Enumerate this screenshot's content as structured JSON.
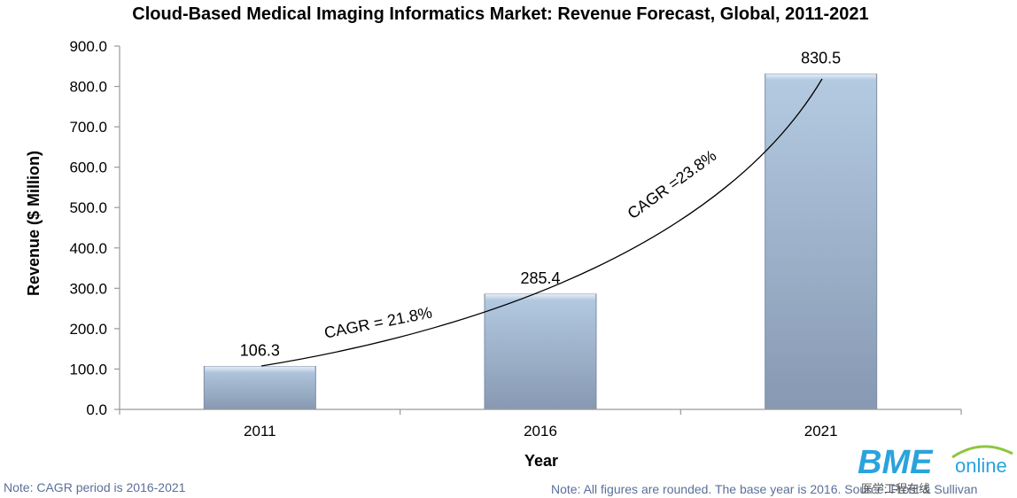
{
  "chart_data": {
    "type": "bar",
    "title": "Cloud-Based Medical Imaging Informatics Market: Revenue Forecast, Global, 2011-2021",
    "xlabel": "Year",
    "ylabel": "Revenue ($ Million)",
    "categories": [
      "2011",
      "2016",
      "2021"
    ],
    "values": [
      106.3,
      285.4,
      830.5
    ],
    "data_labels": [
      "106.3",
      "285.4",
      "830.5"
    ],
    "ylim": [
      0,
      900
    ],
    "yticks": [
      "0.0",
      "100.0",
      "200.0",
      "300.0",
      "400.0",
      "500.0",
      "600.0",
      "700.0",
      "800.0",
      "900.0"
    ],
    "bar_color": "#a3bcd6",
    "grid": false,
    "legend": "none",
    "annotations": {
      "cagr_left": "CAGR = 21.8%",
      "cagr_right": "CAGR =23.8%"
    }
  },
  "notes": {
    "left": "Note: CAGR period is 2016-2021",
    "right": "Note: All figures are rounded. The base year is 2016. Source: Frost & Sullivan"
  },
  "logo": {
    "main": "BME",
    "sub": "online",
    "cn": "医学工程在线"
  }
}
